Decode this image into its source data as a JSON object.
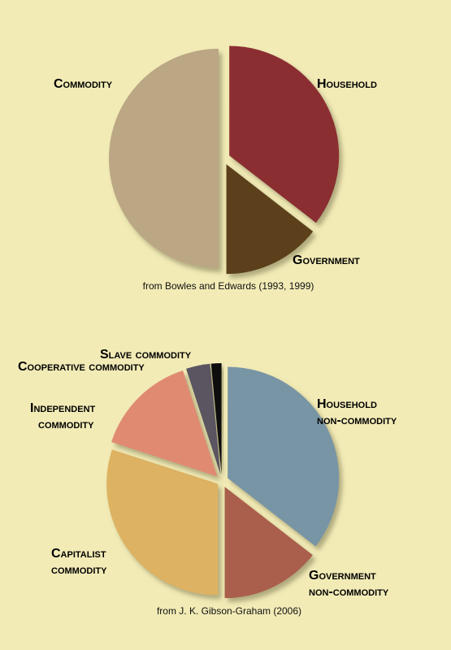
{
  "chart_data": [
    {
      "type": "pie",
      "caption": "from Bowles and Edwards (1993, 1999)",
      "slices": [
        {
          "label": "Household",
          "value": 35.5,
          "color": "#8b2e30"
        },
        {
          "label": "Government",
          "value": 14.5,
          "color": "#5b3f1a"
        },
        {
          "label": "Commodity",
          "value": 50,
          "color": "#bba784"
        }
      ]
    },
    {
      "type": "pie",
      "caption": "from J. K. Gibson-Graham (2006)",
      "slices": [
        {
          "label": "Household non-commodity",
          "value": 35.5,
          "color": "#7895a5"
        },
        {
          "label": "Government non-commodity",
          "value": 14.5,
          "color": "#a95e4c"
        },
        {
          "label": "Capitalist commodity",
          "value": 30,
          "color": "#ddb262"
        },
        {
          "label": "Independent commodity",
          "value": 15,
          "color": "#e08a72"
        },
        {
          "label": "Cooperative commodity",
          "value": 3.5,
          "color": "#5a5561"
        },
        {
          "label": "Slave commodity",
          "value": 1.5,
          "color": "#111111"
        }
      ]
    }
  ]
}
